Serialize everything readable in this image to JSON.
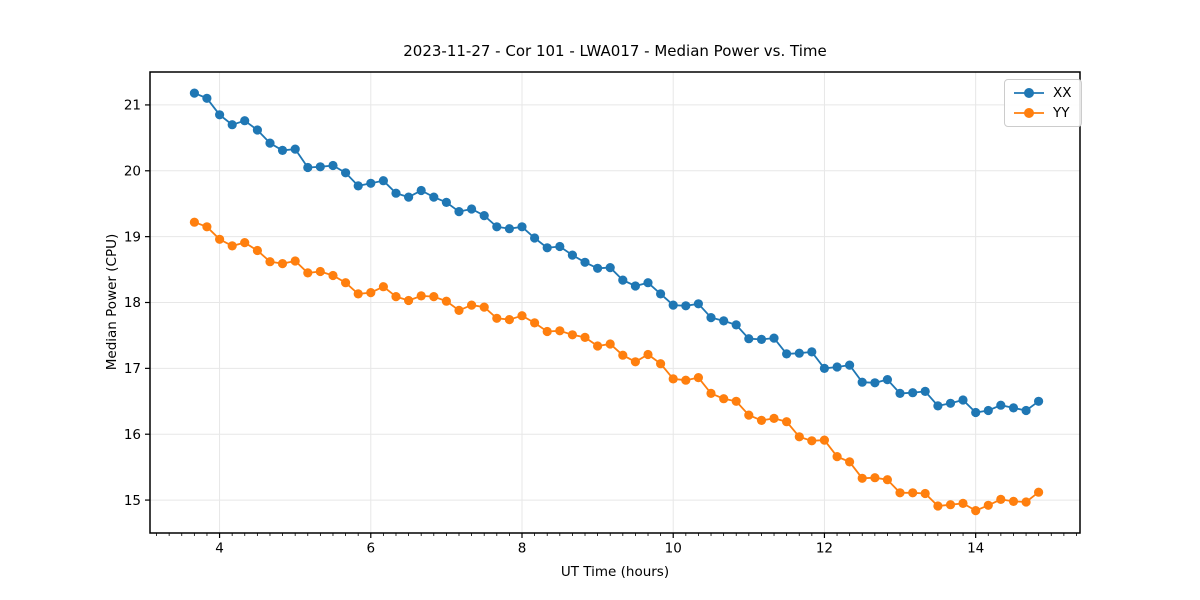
{
  "figure": {
    "background": "#ffffff"
  },
  "chart_data": {
    "type": "line",
    "title": "2023-11-27 - Cor 101 - LWA017 - Median Power vs. Time",
    "xlabel": "UT Time (hours)",
    "ylabel": "Median Power (CPU)",
    "xlim": [
      3.08,
      15.38
    ],
    "ylim": [
      14.5,
      21.5
    ],
    "x_major_ticks": [
      4,
      6,
      8,
      10,
      12,
      14
    ],
    "x_major_tick_labels": [
      "4",
      "6",
      "8",
      "10",
      "12",
      "14"
    ],
    "x_minor_tick_step": 0.166667,
    "y_major_ticks": [
      15,
      16,
      17,
      18,
      19,
      20,
      21
    ],
    "y_major_tick_labels": [
      "15",
      "16",
      "17",
      "18",
      "19",
      "20",
      "21"
    ],
    "grid": true,
    "grid_color": "#e7e7e7",
    "spine_color": "#000000",
    "legend_position": "upper right",
    "marker": "circle",
    "x": [
      3.667,
      3.833,
      4.0,
      4.167,
      4.333,
      4.5,
      4.667,
      4.833,
      5.0,
      5.167,
      5.333,
      5.5,
      5.667,
      5.833,
      6.0,
      6.167,
      6.333,
      6.5,
      6.667,
      6.833,
      7.0,
      7.167,
      7.333,
      7.5,
      7.667,
      7.833,
      8.0,
      8.167,
      8.333,
      8.5,
      8.667,
      8.833,
      9.0,
      9.167,
      9.333,
      9.5,
      9.667,
      9.833,
      10.0,
      10.167,
      10.333,
      10.5,
      10.667,
      10.833,
      11.0,
      11.167,
      11.333,
      11.5,
      11.667,
      11.833,
      12.0,
      12.167,
      12.333,
      12.5,
      12.667,
      12.833,
      13.0,
      13.167,
      13.333,
      13.5,
      13.667,
      13.833,
      14.0,
      14.167,
      14.333,
      14.5,
      14.667,
      14.833
    ],
    "series": [
      {
        "name": "XX",
        "color": "#1f77b4",
        "values": [
          21.18,
          21.1,
          20.85,
          20.7,
          20.76,
          20.62,
          20.42,
          20.31,
          20.33,
          20.05,
          20.06,
          20.08,
          19.97,
          19.77,
          19.81,
          19.85,
          19.66,
          19.6,
          19.7,
          19.6,
          19.52,
          19.38,
          19.42,
          19.32,
          19.15,
          19.12,
          19.15,
          18.98,
          18.83,
          18.85,
          18.72,
          18.61,
          18.52,
          18.53,
          18.34,
          18.25,
          18.3,
          18.13,
          17.96,
          17.95,
          17.98,
          17.77,
          17.72,
          17.66,
          17.45,
          17.44,
          17.46,
          17.22,
          17.23,
          17.25,
          17.0,
          17.02,
          17.05,
          16.79,
          16.78,
          16.83,
          16.62,
          16.63,
          16.65,
          16.43,
          16.47,
          16.52,
          16.33,
          16.36,
          16.44,
          16.4,
          16.36,
          16.5
        ]
      },
      {
        "name": "YY",
        "color": "#ff7f0e",
        "values": [
          19.22,
          19.15,
          18.96,
          18.86,
          18.91,
          18.79,
          18.62,
          18.59,
          18.63,
          18.45,
          18.47,
          18.41,
          18.3,
          18.13,
          18.15,
          18.24,
          18.09,
          18.03,
          18.1,
          18.09,
          18.02,
          17.88,
          17.96,
          17.93,
          17.76,
          17.74,
          17.8,
          17.69,
          17.56,
          17.57,
          17.51,
          17.47,
          17.34,
          17.37,
          17.2,
          17.1,
          17.21,
          17.07,
          16.84,
          16.82,
          16.86,
          16.62,
          16.54,
          16.5,
          16.29,
          16.21,
          16.24,
          16.19,
          15.96,
          15.9,
          15.91,
          15.66,
          15.58,
          15.33,
          15.34,
          15.31,
          15.11,
          15.11,
          15.1,
          14.91,
          14.93,
          14.95,
          14.84,
          14.92,
          15.01,
          14.98,
          14.97,
          15.12
        ]
      }
    ]
  }
}
